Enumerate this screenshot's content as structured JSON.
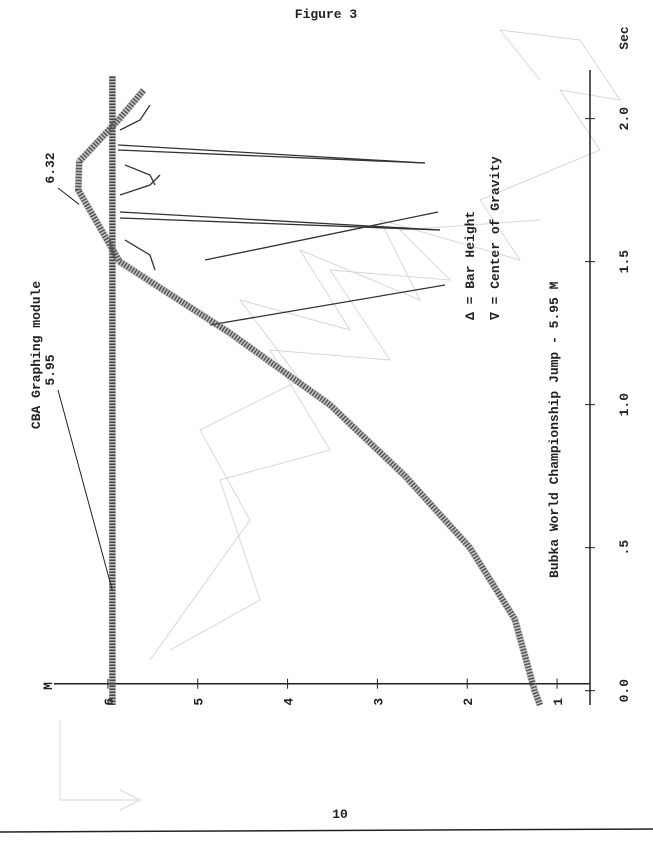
{
  "chart_data": {
    "type": "line",
    "header": "Figure 3",
    "title": "CBA Graphing module",
    "subtitle": "Bubka World Championship Jump - 5.95 M",
    "x_label": "Sec",
    "y_label": "M",
    "page_number": "10",
    "annotations": [
      {
        "text": "5.95",
        "x": 0.35,
        "y": 5.95
      },
      {
        "text": "6.32",
        "x": 1.7,
        "y": 6.32
      }
    ],
    "xlim": [
      -0.05,
      2.17
    ],
    "xticks": [
      {
        "value": 0,
        "label": "0.0"
      },
      {
        "value": 0.5,
        "label": ".5"
      },
      {
        "value": 1,
        "label": "1.0"
      },
      1.5,
      {
        "value": 2,
        "label": "2.0"
      }
    ],
    "ylim": [
      0.6,
      6.6
    ],
    "yticks": [
      1,
      2,
      3,
      4,
      5,
      6
    ],
    "grid": false,
    "series": [
      {
        "name": "Δ = Bar Height",
        "color": "#444444",
        "x": [
          -0.05,
          2.15
        ],
        "values": [
          5.95,
          5.95
        ]
      },
      {
        "name": "∇ = Center of Gravity",
        "color": "#555555",
        "x": [
          -0.05,
          0,
          0.25,
          0.5,
          0.75,
          1.0,
          1.25,
          1.5,
          1.75,
          1.85,
          2.0,
          2.1
        ],
        "values": [
          1.19,
          1.25,
          1.47,
          1.97,
          2.69,
          3.53,
          4.64,
          5.87,
          6.33,
          6.32,
          5.87,
          5.6
        ]
      }
    ]
  }
}
